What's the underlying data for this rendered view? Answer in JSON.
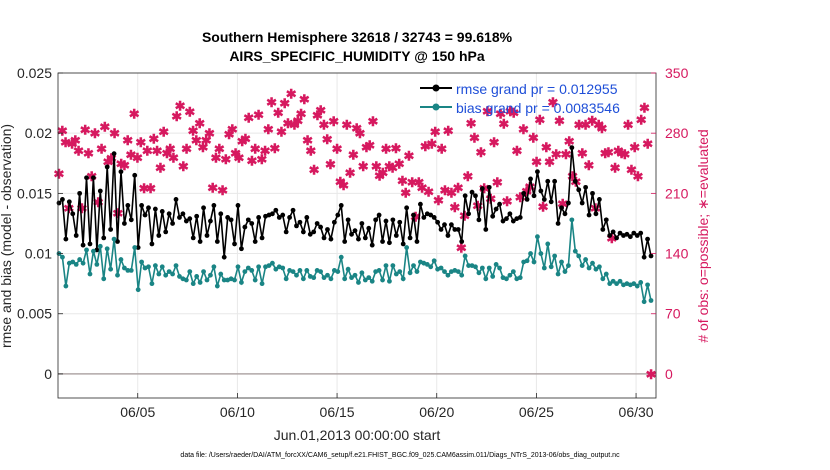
{
  "chart_data": {
    "type": "line",
    "title_line1": "Southern Hemisphere 32618 / 32743 = 99.618%",
    "title_line2": "AIRS_SPECIFIC_HUMIDITY @ 150 hPa",
    "xlabel": "Jun.01,2013 00:00:00 start",
    "ylabel_left": "rmse and bias (model - observation)",
    "ylabel_right": "# of obs: o=possible; ∗=evaluated",
    "footnote": "data file: /Users/raeder/DAI/ATM_forcXX/CAM6_setup/f.e21.FHIST_BGC.f09_025.CAM6assim.011/Diags_NTrS_2013-06/obs_diag_output.nc",
    "xlim": [
      1.0,
      31.0
    ],
    "xtick_values": [
      5,
      10,
      15,
      20,
      25,
      30
    ],
    "xtick_labels": [
      "06/05",
      "06/10",
      "06/15",
      "06/20",
      "06/25",
      "06/30"
    ],
    "ylim_left": [
      -0.002,
      0.025
    ],
    "ytick_left_values": [
      0,
      0.005,
      0.01,
      0.015,
      0.02,
      0.025
    ],
    "ytick_left_labels": [
      "0",
      "0.005",
      "0.01",
      "0.015",
      "0.02",
      "0.025"
    ],
    "ylim_right": [
      -28,
      350
    ],
    "ytick_right_values": [
      0,
      70,
      140,
      210,
      280,
      350
    ],
    "ytick_right_labels": [
      "0",
      "70",
      "140",
      "210",
      "280",
      "350"
    ],
    "grid": true,
    "legend_position": "top-right",
    "colors": {
      "rmse": "#000000",
      "bias": "#1a8585",
      "obs": "#d6195f",
      "legend_text": "#1f4fd8",
      "grid": "#e8e8e8",
      "zero_line": "#b0a7a7"
    },
    "series": [
      {
        "name": "rmse grand pr = 0.012955",
        "axis": "left",
        "values": [
          0.0142,
          0.0145,
          0.0112,
          0.0143,
          0.0133,
          0.0115,
          0.015,
          0.0107,
          0.0163,
          0.0108,
          0.0163,
          0.0103,
          0.0152,
          0.0113,
          0.0172,
          0.012,
          0.0183,
          0.011,
          0.0168,
          0.0125,
          0.014,
          0.0128,
          0.0165,
          0.0105,
          0.014,
          0.0132,
          0.0138,
          0.0108,
          0.0137,
          0.0115,
          0.0135,
          0.0118,
          0.0133,
          0.0125,
          0.0145,
          0.013,
          0.0133,
          0.0127,
          0.0129,
          0.0113,
          0.0131,
          0.011,
          0.0138,
          0.0115,
          0.0127,
          0.014,
          0.011,
          0.0133,
          0.0097,
          0.013,
          0.0128,
          0.0108,
          0.014,
          0.0104,
          0.0122,
          0.0128,
          0.0125,
          0.011,
          0.013,
          0.0113,
          0.0131,
          0.0132,
          0.0133,
          0.0136,
          0.013,
          0.0132,
          0.0118,
          0.013,
          0.0136,
          0.0123,
          0.0126,
          0.0118,
          0.013,
          0.0116,
          0.0118,
          0.0125,
          0.0122,
          0.0113,
          0.012,
          0.0112,
          0.0126,
          0.0132,
          0.014,
          0.011,
          0.0128,
          0.0116,
          0.0119,
          0.0112,
          0.0125,
          0.0113,
          0.0121,
          0.0107,
          0.0128,
          0.0132,
          0.011,
          0.0127,
          0.0109,
          0.0128,
          0.0115,
          0.0126,
          0.0108,
          0.0138,
          0.0113,
          0.0132,
          0.011,
          0.0141,
          0.013,
          0.0133,
          0.0132,
          0.013,
          0.0126,
          0.012,
          0.0124,
          0.0115,
          0.0124,
          0.012,
          0.012,
          0.011,
          0.0148,
          0.0133,
          0.0151,
          0.0148,
          0.0128,
          0.0154,
          0.012,
          0.0155,
          0.0131,
          0.0137,
          0.0141,
          0.0127,
          0.0129,
          0.0133,
          0.0127,
          0.0129,
          0.013,
          0.015,
          0.0145,
          0.0162,
          0.0148,
          0.0168,
          0.0152,
          0.0145,
          0.016,
          0.0143,
          0.016,
          0.0125,
          0.0138,
          0.0133,
          0.0142,
          0.0188,
          0.016,
          0.0153,
          0.0142,
          0.0155,
          0.0132,
          0.015,
          0.0133,
          0.0145,
          0.012,
          0.0128,
          0.0115,
          0.0118,
          0.0113,
          0.0117,
          0.0115,
          0.0116,
          0.0114,
          0.0117,
          0.0115,
          0.0117,
          0.0097,
          0.0112,
          0.0098
        ]
      },
      {
        "name": "bias grand pr = 0.0083546",
        "axis": "left",
        "values": [
          0.01,
          0.0097,
          0.0073,
          0.0092,
          0.0093,
          0.0091,
          0.0095,
          0.0092,
          0.0103,
          0.0083,
          0.0102,
          0.0091,
          0.0106,
          0.0079,
          0.0104,
          0.0087,
          0.0112,
          0.0082,
          0.0095,
          0.0088,
          0.0086,
          0.0086,
          0.0105,
          0.007,
          0.0093,
          0.0088,
          0.0089,
          0.0075,
          0.009,
          0.0083,
          0.0089,
          0.0082,
          0.0085,
          0.0083,
          0.009,
          0.0081,
          0.0079,
          0.0078,
          0.0085,
          0.0075,
          0.0081,
          0.0076,
          0.0085,
          0.0078,
          0.0082,
          0.0089,
          0.0073,
          0.0083,
          0.0078,
          0.0078,
          0.0079,
          0.0078,
          0.0089,
          0.0076,
          0.0085,
          0.0088,
          0.0086,
          0.0078,
          0.0089,
          0.0075,
          0.0089,
          0.009,
          0.0092,
          0.0087,
          0.0089,
          0.0088,
          0.0079,
          0.0086,
          0.0085,
          0.0082,
          0.0086,
          0.0079,
          0.0086,
          0.0081,
          0.008,
          0.0086,
          0.0085,
          0.008,
          0.0082,
          0.0079,
          0.0086,
          0.0085,
          0.0097,
          0.0079,
          0.0087,
          0.008,
          0.0082,
          0.0076,
          0.0084,
          0.0078,
          0.008,
          0.0077,
          0.0085,
          0.0086,
          0.0078,
          0.009,
          0.0077,
          0.009,
          0.0083,
          0.0085,
          0.0079,
          0.0105,
          0.0084,
          0.009,
          0.0085,
          0.0093,
          0.0092,
          0.0091,
          0.0089,
          0.0094,
          0.0087,
          0.0088,
          0.0085,
          0.0082,
          0.0085,
          0.0086,
          0.0085,
          0.0082,
          0.0098,
          0.009,
          0.009,
          0.0089,
          0.0084,
          0.0088,
          0.0079,
          0.0088,
          0.0081,
          0.0091,
          0.0088,
          0.008,
          0.0079,
          0.0082,
          0.0085,
          0.0079,
          0.008,
          0.0093,
          0.0094,
          0.01,
          0.0093,
          0.0114,
          0.01,
          0.0088,
          0.0108,
          0.0089,
          0.0098,
          0.0083,
          0.0093,
          0.0085,
          0.009,
          0.0128,
          0.0102,
          0.0098,
          0.009,
          0.0095,
          0.0088,
          0.0092,
          0.0087,
          0.0089,
          0.0079,
          0.0083,
          0.0075,
          0.0077,
          0.0075,
          0.0077,
          0.0074,
          0.0075,
          0.0074,
          0.0075,
          0.0073,
          0.0076,
          0.006,
          0.0074,
          0.0061
        ]
      },
      {
        "name": "# of obs evaluated",
        "axis": "right",
        "values": [
          233,
          283,
          270,
          193,
          268,
          272,
          260,
          193,
          284,
          257,
          230,
          280,
          200,
          262,
          288,
          247,
          251,
          280,
          187,
          245,
          243,
          272,
          255,
          303,
          252,
          270,
          216,
          260,
          216,
          274,
          260,
          240,
          282,
          257,
          262,
          252,
          300,
          312,
          242,
          262,
          305,
          283,
          272,
          292,
          264,
          272,
          280,
          217,
          252,
          262,
          214,
          250,
          279,
          285,
          257,
          252,
          271,
          274,
          298,
          248,
          262,
          302,
          250,
          260,
          285,
          316,
          263,
          304,
          282,
          315,
          292,
          326,
          290,
          295,
          303,
          320,
          272,
          260,
          238,
          301,
          307,
          290,
          273,
          244,
          294,
          262,
          224,
          220,
          290,
          234,
          255,
          286,
          280,
          242,
          264,
          266,
          294,
          242,
          231,
          234,
          262,
          242,
          240,
          263,
          245,
          225,
          211,
          254,
          223,
          183,
          223,
          217,
          265,
          212,
          268,
          282,
          202,
          262,
          214,
          283,
          211,
          194,
          217,
          147,
          184,
          230,
          292,
          275,
          196,
          258,
          216,
          306,
          204,
          270,
          223,
          303,
          291,
          201,
          306,
          304,
          260,
          206,
          285,
          213,
          218,
          275,
          247,
          296,
          195,
          264,
          247,
          316,
          256,
          295,
          198,
          256,
          271,
          230,
          224,
          290,
          257,
          290,
          243,
          295,
          193,
          290,
          286,
          257,
          258,
          158,
          240,
          260,
          257,
          256,
          290,
          238,
          264,
          230,
          296,
          310,
          268,
          0
        ]
      }
    ],
    "obs_possible_marker_note": "o"
  }
}
